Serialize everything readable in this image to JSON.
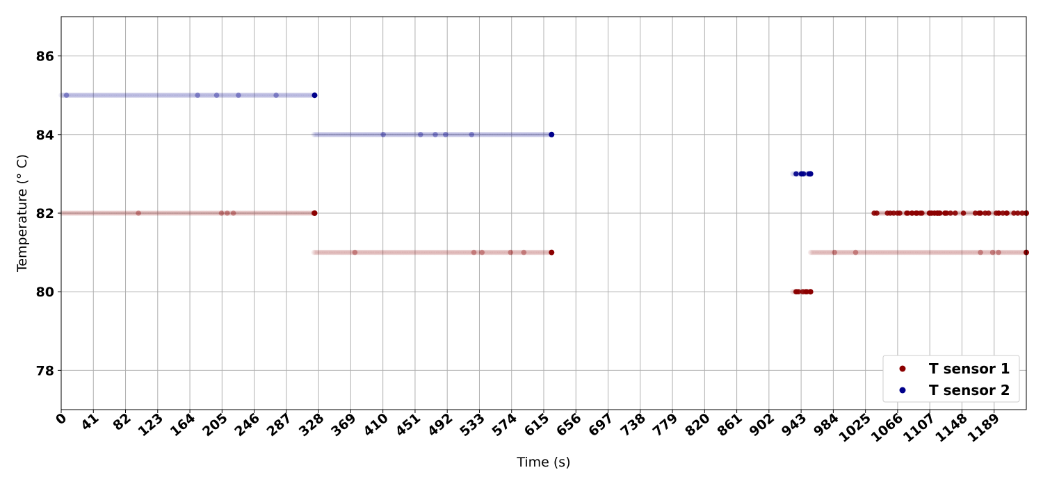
{
  "chart_data": {
    "type": "scatter",
    "xlabel": "Time (s)",
    "ylabel": "Temperature (° C)",
    "xlim": [
      0,
      1230
    ],
    "ylim": [
      77,
      87
    ],
    "x_ticks": [
      0,
      41,
      82,
      123,
      164,
      205,
      246,
      287,
      328,
      369,
      410,
      451,
      492,
      533,
      574,
      615,
      656,
      697,
      738,
      779,
      820,
      861,
      902,
      943,
      984,
      1025,
      1066,
      1107,
      1148,
      1189
    ],
    "y_ticks": [
      78,
      80,
      82,
      84,
      86
    ],
    "grid": true,
    "legend_position": "bottom-right",
    "series": [
      {
        "name": "T sensor 1",
        "color": "#8b0000",
        "segments": [
          {
            "x_start": 0,
            "x_end": 323,
            "y": 82,
            "dense": false
          },
          {
            "x_start": 322,
            "x_end": 625,
            "y": 81,
            "dense": false
          },
          {
            "x_start": 932,
            "x_end": 955,
            "y": 80,
            "dense": true
          },
          {
            "x_start": 955,
            "x_end": 1230,
            "y": 81,
            "dense": false
          },
          {
            "x_start": 1035,
            "x_end": 1230,
            "y": 82,
            "dense": true
          }
        ]
      },
      {
        "name": "T sensor 2",
        "color": "#00008b",
        "segments": [
          {
            "x_start": 0,
            "x_end": 323,
            "y": 85,
            "dense": false
          },
          {
            "x_start": 322,
            "x_end": 625,
            "y": 84,
            "dense": false
          },
          {
            "x_start": 932,
            "x_end": 955,
            "y": 83,
            "dense": true
          }
        ]
      }
    ]
  }
}
